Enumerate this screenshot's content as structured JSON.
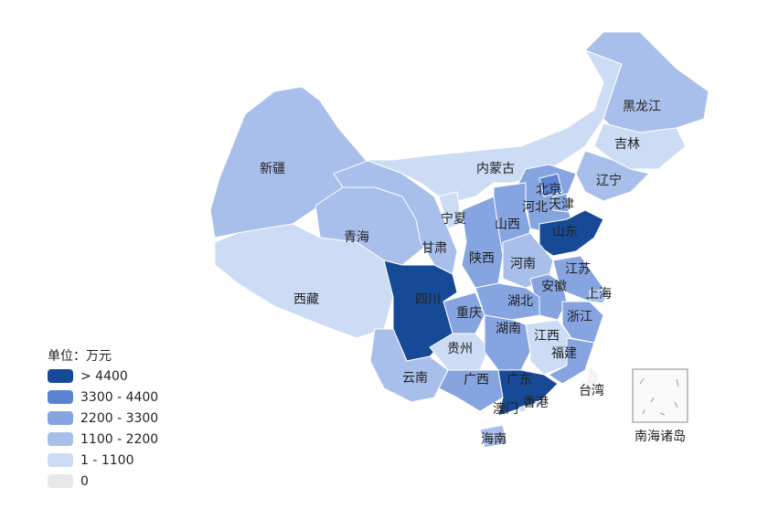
{
  "legend": {
    "title": "单位：万元",
    "items": [
      {
        "label": "> 4400",
        "color": "#174a96"
      },
      {
        "label": "3300 - 4400",
        "color": "#5b83cf"
      },
      {
        "label": "2200 - 3300",
        "color": "#86a4e0"
      },
      {
        "label": "1100 - 2200",
        "color": "#a9bfeb"
      },
      {
        "label": "1 - 1100",
        "color": "#cbdcf4"
      },
      {
        "label": "0",
        "color": "#e8e8e8"
      }
    ]
  },
  "regions": [
    {
      "name": "新疆",
      "color": "#a9bfeb"
    },
    {
      "name": "西藏",
      "color": "#cbdcf4"
    },
    {
      "name": "青海",
      "color": "#a9bfeb"
    },
    {
      "name": "甘肃",
      "color": "#a9bfeb"
    },
    {
      "name": "内蒙古",
      "color": "#cbdcf4"
    },
    {
      "name": "黑龙江",
      "color": "#a9bfeb"
    },
    {
      "name": "吉林",
      "color": "#cbdcf4"
    },
    {
      "name": "辽宁",
      "color": "#a9bfeb"
    },
    {
      "name": "河北",
      "color": "#86a4e0"
    },
    {
      "name": "北京",
      "color": "#5b83cf"
    },
    {
      "name": "天津",
      "color": "#86a4e0"
    },
    {
      "name": "山西",
      "color": "#86a4e0"
    },
    {
      "name": "山东",
      "color": "#174a96"
    },
    {
      "name": "宁夏",
      "color": "#cbdcf4"
    },
    {
      "name": "陕西",
      "color": "#86a4e0"
    },
    {
      "name": "河南",
      "color": "#a9bfeb"
    },
    {
      "name": "江苏",
      "color": "#86a4e0"
    },
    {
      "name": "上海",
      "color": "#a9bfeb"
    },
    {
      "name": "安徽",
      "color": "#86a4e0"
    },
    {
      "name": "浙江",
      "color": "#86a4e0"
    },
    {
      "name": "湖北",
      "color": "#86a4e0"
    },
    {
      "name": "重庆",
      "color": "#86a4e0"
    },
    {
      "name": "四川",
      "color": "#174a96"
    },
    {
      "name": "贵州",
      "color": "#cbdcf4"
    },
    {
      "name": "云南",
      "color": "#a9bfeb"
    },
    {
      "name": "湖南",
      "color": "#86a4e0"
    },
    {
      "name": "江西",
      "color": "#cbdcf4"
    },
    {
      "name": "福建",
      "color": "#86a4e0"
    },
    {
      "name": "广西",
      "color": "#86a4e0"
    },
    {
      "name": "广东",
      "color": "#174a96"
    },
    {
      "name": "台湾",
      "color": "#f4f4f4"
    },
    {
      "name": "海南",
      "color": "#a9bfeb"
    },
    {
      "name": "香港",
      "color": "#cbdcf4"
    },
    {
      "name": "澳门",
      "color": "#cbdcf4"
    }
  ],
  "inset": {
    "label": "南海诸岛"
  }
}
